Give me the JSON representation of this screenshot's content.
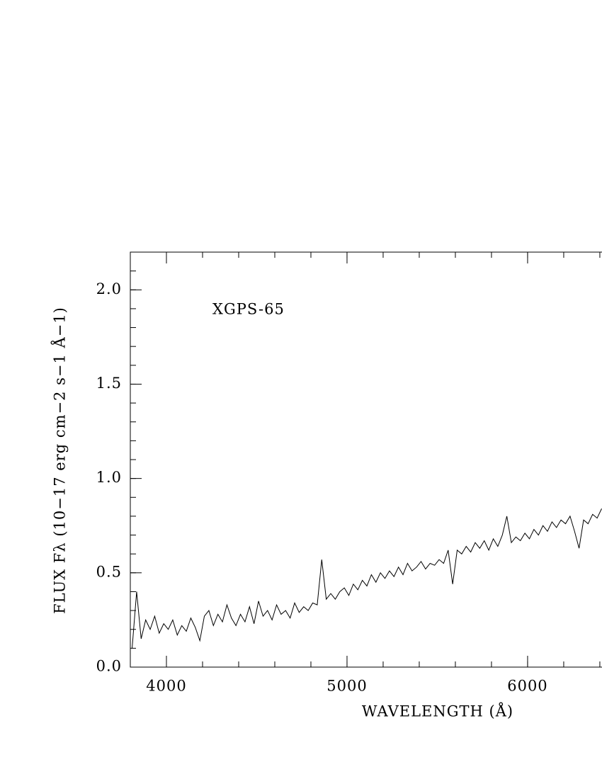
{
  "chart_data": {
    "type": "line",
    "annotation": "XGPS-65",
    "xlabel": "WAVELENGTH (Å)",
    "ylabel": "FLUX Fλ (10−17 erg cm−2 s−1 Å−1)",
    "xlim": [
      3800,
      6410
    ],
    "ylim": [
      0,
      2.2
    ],
    "xticks": [
      4000,
      5000,
      6000
    ],
    "yticks": [
      {
        "value": 0,
        "label": "0.0"
      },
      0.5,
      {
        "value": 1,
        "label": "1.0"
      },
      1.5,
      {
        "value": 2,
        "label": "2.0"
      }
    ],
    "x": [
      3810,
      3835,
      3860,
      3885,
      3910,
      3935,
      3960,
      3985,
      4010,
      4035,
      4060,
      4085,
      4110,
      4135,
      4160,
      4185,
      4210,
      4235,
      4260,
      4285,
      4310,
      4335,
      4360,
      4385,
      4410,
      4435,
      4460,
      4485,
      4510,
      4535,
      4560,
      4585,
      4610,
      4635,
      4660,
      4685,
      4710,
      4735,
      4760,
      4785,
      4810,
      4835,
      4860,
      4885,
      4910,
      4935,
      4960,
      4985,
      5010,
      5035,
      5060,
      5085,
      5110,
      5135,
      5160,
      5185,
      5210,
      5235,
      5260,
      5285,
      5310,
      5335,
      5360,
      5385,
      5410,
      5435,
      5460,
      5485,
      5510,
      5535,
      5560,
      5585,
      5610,
      5635,
      5660,
      5685,
      5710,
      5735,
      5760,
      5785,
      5810,
      5835,
      5860,
      5885,
      5910,
      5935,
      5960,
      5985,
      6010,
      6035,
      6060,
      6085,
      6110,
      6135,
      6160,
      6185,
      6210,
      6235,
      6260,
      6285,
      6310,
      6335,
      6360,
      6385,
      6410
    ],
    "series": [
      {
        "color": "#000000",
        "values": [
          0.1,
          0.4,
          0.15,
          0.25,
          0.2,
          0.27,
          0.18,
          0.23,
          0.2,
          0.25,
          0.17,
          0.22,
          0.19,
          0.26,
          0.21,
          0.14,
          0.27,
          0.3,
          0.22,
          0.28,
          0.24,
          0.33,
          0.26,
          0.22,
          0.28,
          0.24,
          0.32,
          0.23,
          0.35,
          0.27,
          0.3,
          0.25,
          0.33,
          0.28,
          0.3,
          0.26,
          0.34,
          0.29,
          0.32,
          0.3,
          0.34,
          0.33,
          0.57,
          0.36,
          0.39,
          0.36,
          0.4,
          0.42,
          0.38,
          0.44,
          0.41,
          0.46,
          0.43,
          0.49,
          0.45,
          0.5,
          0.47,
          0.51,
          0.48,
          0.53,
          0.49,
          0.55,
          0.51,
          0.53,
          0.56,
          0.52,
          0.55,
          0.54,
          0.57,
          0.55,
          0.62,
          0.44,
          0.62,
          0.6,
          0.64,
          0.61,
          0.66,
          0.63,
          0.67,
          0.62,
          0.68,
          0.64,
          0.7,
          0.8,
          0.66,
          0.69,
          0.67,
          0.71,
          0.68,
          0.73,
          0.7,
          0.75,
          0.72,
          0.77,
          0.74,
          0.78,
          0.76,
          0.8,
          0.72,
          0.63,
          0.78,
          0.76,
          0.81,
          0.79,
          0.84
        ]
      }
    ]
  }
}
